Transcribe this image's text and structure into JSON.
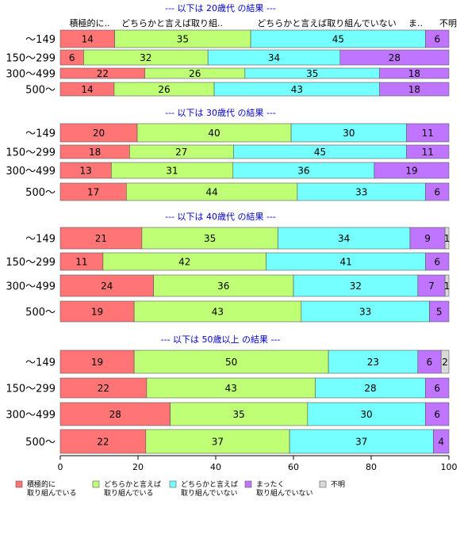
{
  "chart_data": {
    "type": "bar",
    "orientation": "horizontal",
    "stacked": "percent",
    "xlim": [
      0,
      100
    ],
    "xticks": [
      0,
      20,
      40,
      60,
      80,
      100
    ],
    "categories": [
      "〜149",
      "150〜299",
      "300〜499",
      "500〜"
    ],
    "colors": [
      "#ff7575",
      "#bfff75",
      "#75ffff",
      "#bf75ff",
      "#d9d9d9"
    ],
    "legend": {
      "placement": "bottom",
      "items": [
        {
          "lines": [
            "積極的に",
            "取り組んでいる"
          ]
        },
        {
          "lines": [
            "どちらかと言えば",
            "取り組んでいる"
          ]
        },
        {
          "lines": [
            "どちらかと言えば",
            "取り組んでいない"
          ]
        },
        {
          "lines": [
            "まったく",
            "取り組んでいない"
          ]
        },
        {
          "lines": [
            "不明"
          ]
        }
      ]
    },
    "header_labels": [
      "積極的に..",
      "どちらかと言えば取り組..",
      "どちらかと言えば取り組んでいない",
      "ま..",
      "不明"
    ],
    "groups": [
      {
        "title": "--- 以下は 20歳代 の結果 ---",
        "rows": [
          [
            14,
            35,
            45,
            6,
            0
          ],
          [
            6,
            32,
            34,
            28,
            0
          ],
          [
            22,
            26,
            35,
            18,
            0
          ],
          [
            14,
            26,
            43,
            18,
            0
          ]
        ]
      },
      {
        "title": "--- 以下は 30歳代 の結果 ---",
        "rows": [
          [
            20,
            40,
            30,
            11,
            0
          ],
          [
            18,
            27,
            45,
            11,
            0
          ],
          [
            13,
            31,
            36,
            19,
            0
          ],
          [
            17,
            44,
            33,
            6,
            0
          ]
        ]
      },
      {
        "title": "--- 以下は 40歳代 の結果 ---",
        "rows": [
          [
            21,
            35,
            34,
            9,
            1
          ],
          [
            11,
            42,
            41,
            6,
            0
          ],
          [
            24,
            36,
            32,
            7,
            1
          ],
          [
            19,
            43,
            33,
            5,
            0
          ]
        ]
      },
      {
        "title": "--- 以下は 50歳以上 の結果 ---",
        "rows": [
          [
            19,
            50,
            23,
            6,
            2
          ],
          [
            22,
            43,
            28,
            6,
            0
          ],
          [
            28,
            35,
            30,
            6,
            0
          ],
          [
            22,
            37,
            37,
            4,
            0
          ]
        ]
      }
    ]
  }
}
